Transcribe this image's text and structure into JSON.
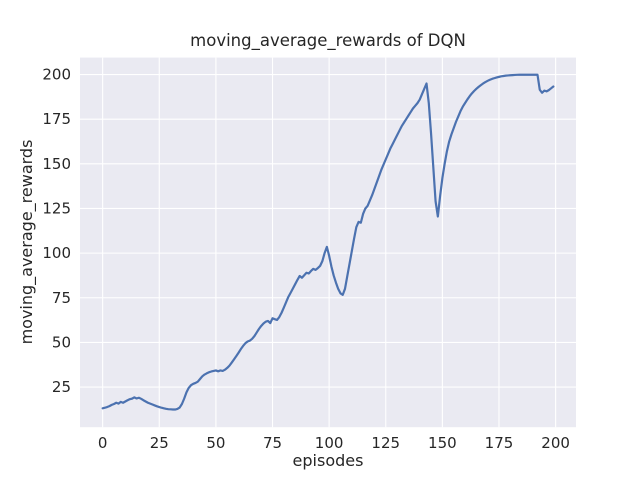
{
  "chart_data": {
    "type": "line",
    "title": "moving_average_rewards of DQN",
    "xlabel": "episodes",
    "ylabel": "moving_average_rewards",
    "x_ticks": [
      0,
      25,
      50,
      75,
      100,
      125,
      150,
      175,
      200
    ],
    "y_ticks": [
      25,
      50,
      75,
      100,
      125,
      150,
      175,
      200
    ],
    "xlim": [
      -10,
      209
    ],
    "ylim": [
      2.5,
      209.5
    ],
    "grid": "on",
    "legend": "none",
    "style": {
      "line_color": "#4c72b0",
      "axes_background": "#eaeaf2",
      "grid_color": "#ffffff",
      "figure_background": "#ffffff",
      "text_color": "#262626",
      "line_width": 2.2,
      "grid_width": 1.1
    },
    "series": [
      {
        "name": "moving_average_rewards",
        "x_is_index": true,
        "values": [
          13.1,
          13.4,
          13.8,
          14.3,
          15.0,
          15.5,
          16.2,
          15.7,
          16.7,
          16.2,
          16.9,
          17.6,
          18.2,
          18.5,
          19.2,
          18.6,
          19.0,
          18.4,
          17.6,
          16.9,
          16.2,
          15.7,
          15.2,
          14.7,
          14.2,
          13.8,
          13.4,
          13.1,
          12.8,
          12.6,
          12.5,
          12.4,
          12.4,
          12.7,
          13.5,
          15.5,
          18.5,
          22.0,
          24.5,
          26.0,
          26.8,
          27.3,
          28.0,
          29.5,
          31.0,
          32.0,
          32.7,
          33.3,
          33.7,
          34.0,
          34.3,
          33.8,
          34.3,
          34.0,
          34.7,
          35.7,
          37.0,
          38.7,
          40.5,
          42.3,
          44.2,
          46.2,
          48.0,
          49.5,
          50.5,
          51.0,
          52.0,
          53.5,
          55.5,
          57.5,
          59.2,
          60.6,
          61.6,
          62.0,
          60.8,
          63.5,
          63.0,
          62.6,
          64.2,
          66.6,
          69.5,
          72.5,
          75.5,
          77.8,
          80.2,
          82.6,
          85.0,
          87.2,
          86.2,
          87.6,
          89.0,
          88.6,
          90.0,
          91.2,
          90.6,
          91.6,
          92.8,
          95.5,
          100.0,
          103.5,
          98.5,
          92.5,
          87.5,
          83.5,
          80.0,
          77.5,
          76.6,
          80.0,
          87.0,
          94.0,
          101.0,
          108.0,
          114.5,
          117.5,
          117.0,
          122.0,
          125.0,
          126.5,
          129.5,
          132.5,
          136.0,
          139.5,
          143.0,
          146.5,
          149.5,
          152.5,
          155.5,
          158.5,
          161.0,
          163.5,
          166.0,
          168.5,
          171.0,
          173.0,
          175.0,
          177.0,
          179.0,
          181.0,
          182.5,
          184.0,
          186.0,
          189.0,
          192.0,
          195.0,
          184.0,
          167.0,
          148.0,
          129.0,
          120.5,
          132.0,
          142.0,
          150.0,
          157.0,
          162.5,
          166.5,
          170.0,
          173.5,
          176.5,
          179.5,
          182.0,
          184.0,
          186.0,
          187.8,
          189.4,
          190.8,
          192.0,
          193.1,
          194.1,
          195.0,
          195.8,
          196.5,
          197.1,
          197.6,
          198.0,
          198.4,
          198.7,
          199.0,
          199.2,
          199.4,
          199.5,
          199.6,
          199.7,
          199.8,
          199.85,
          199.9,
          199.9,
          199.9,
          199.9,
          199.9,
          199.9,
          199.9,
          199.9,
          199.9,
          191.5,
          189.8,
          191.0,
          190.6,
          191.3,
          192.3,
          193.3
        ]
      }
    ]
  }
}
